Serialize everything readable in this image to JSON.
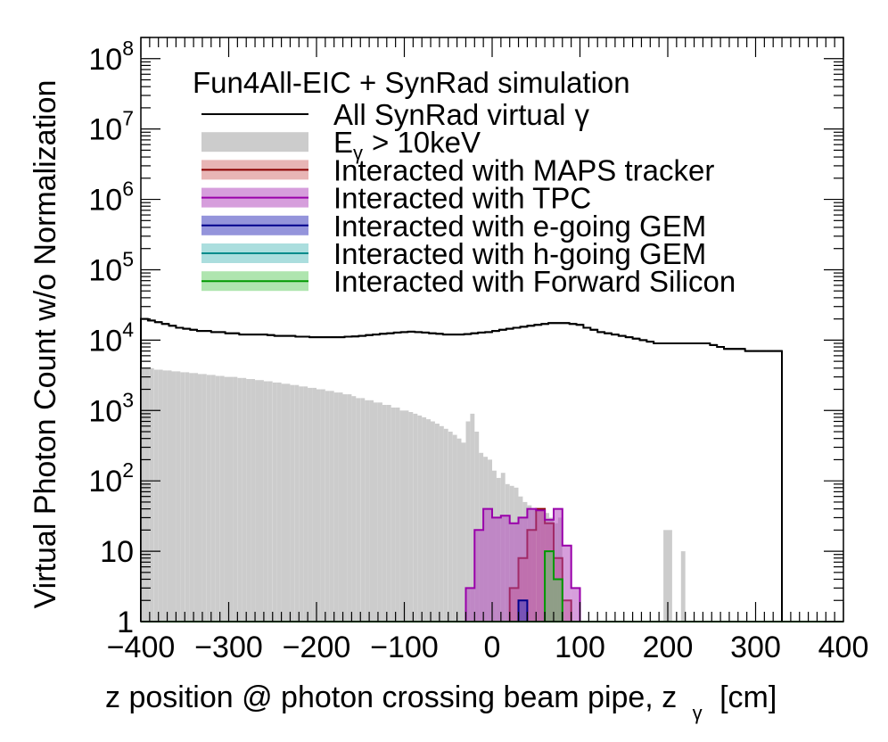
{
  "chart_data": {
    "type": "histogram",
    "title": "Fun4All-EIC + SynRad simulation",
    "xlabel": "z position @ photon crossing beam pipe, z",
    "xlabel_sub": "γ",
    "xlabel_unit": "[cm]",
    "ylabel": "Virtual Photon Count w/o Normalization",
    "xlim": [
      -400,
      400
    ],
    "ylim": [
      1,
      200000000
    ],
    "yscale": "log",
    "grid": false,
    "legend_position": "top",
    "x_ticks": [
      -400,
      -300,
      -200,
      -100,
      0,
      100,
      200,
      300,
      400
    ],
    "x_tick_labels": [
      "−400",
      "−300",
      "−200",
      "−100",
      "0",
      "100",
      "200",
      "300",
      "400"
    ],
    "y_ticks": [
      {
        "value": 1,
        "base": "1",
        "exp": ""
      },
      {
        "value": 10,
        "base": "10",
        "exp": ""
      },
      {
        "value": 100,
        "base": "10",
        "exp": "2"
      },
      {
        "value": 1000,
        "base": "10",
        "exp": "3"
      },
      {
        "value": 10000,
        "base": "10",
        "exp": "4"
      },
      {
        "value": 100000,
        "base": "10",
        "exp": "5"
      },
      {
        "value": 1000000,
        "base": "10",
        "exp": "6"
      },
      {
        "value": 10000000,
        "base": "10",
        "exp": "7"
      },
      {
        "value": 100000000,
        "base": "10",
        "exp": "8"
      }
    ],
    "series": [
      {
        "name": "All SynRad virtual γ",
        "legend_main": "All SynRad virtual",
        "legend_sub": "",
        "legend_tail": "γ",
        "style": "line",
        "color": "#000000",
        "fill": "none",
        "bin_edges": [
          -400,
          330
        ],
        "bin_width": 8,
        "values": [
          20000,
          19000,
          18000,
          17000,
          16000,
          15000,
          14500,
          14000,
          13500,
          13500,
          13000,
          13000,
          12500,
          12500,
          12000,
          12000,
          12000,
          12000,
          11800,
          11500,
          11500,
          11500,
          11200,
          11200,
          11000,
          11000,
          11000,
          11000,
          11000,
          11200,
          11300,
          11500,
          11800,
          12000,
          12300,
          12500,
          12800,
          13000,
          13200,
          13000,
          12800,
          12500,
          12300,
          12000,
          12000,
          12000,
          12200,
          12500,
          12800,
          13000,
          13500,
          14000,
          14500,
          15000,
          15500,
          16000,
          16500,
          17000,
          17500,
          17500,
          17500,
          17000,
          16500,
          15000,
          14000,
          13000,
          12500,
          12000,
          11500,
          11000,
          10500,
          10000,
          9500,
          9000,
          9000,
          9000,
          9000,
          9000,
          9000,
          9000,
          9000,
          8500,
          8000,
          7500,
          7500,
          7500,
          7000,
          7000,
          7000,
          7000,
          7000,
          7000
        ]
      },
      {
        "name": "E_γ > 10keV",
        "legend_main": "E",
        "legend_sub": "γ",
        "legend_tail": "> 10keV",
        "style": "fill",
        "color": "#cccccc",
        "fill": "#cccccc",
        "bin_edges": [
          -400,
          220
        ],
        "bin_width": 5,
        "values": [
          4000,
          4000,
          4000,
          3800,
          3800,
          3700,
          3700,
          3600,
          3600,
          3500,
          3500,
          3400,
          3400,
          3300,
          3300,
          3200,
          3200,
          3100,
          3100,
          3000,
          3000,
          3000,
          2900,
          2900,
          2800,
          2800,
          2700,
          2700,
          2600,
          2600,
          2500,
          2500,
          2400,
          2400,
          2300,
          2300,
          2200,
          2200,
          2100,
          2100,
          2000,
          2000,
          1900,
          1900,
          1800,
          1800,
          1700,
          1700,
          1600,
          1500,
          1500,
          1400,
          1400,
          1300,
          1300,
          1200,
          1200,
          1100,
          1100,
          1000,
          1000,
          950,
          900,
          850,
          800,
          750,
          700,
          650,
          600,
          550,
          500,
          450,
          400,
          350,
          700,
          900,
          500,
          250,
          220,
          200,
          140,
          110,
          130,
          90,
          85,
          80,
          60,
          50,
          45,
          40,
          40,
          40,
          35,
          30,
          25,
          30,
          1,
          1,
          1,
          1,
          1,
          1,
          1,
          1,
          1,
          1,
          1,
          1,
          1,
          1,
          1,
          1,
          1,
          1,
          1,
          1,
          1,
          1,
          1,
          1,
          1,
          1,
          1,
          1
        ],
        "overrides": [
          {
            "x0": 195,
            "x1": 205,
            "value": 20
          },
          {
            "x0": 205,
            "x1": 214,
            "value": 1
          },
          {
            "x0": 214,
            "x1": 224,
            "value": 10
          }
        ]
      },
      {
        "name": "Interacted with MAPS tracker",
        "legend_main": "Interacted with MAPS tracker",
        "legend_sub": "",
        "legend_tail": "",
        "style": "fill",
        "color": "#8b0000",
        "fill": "#cd5c5c",
        "fill_opacity": 0.45,
        "bin_edges": [
          20,
          90
        ],
        "bin_width": 10,
        "values": [
          3,
          8,
          20,
          40,
          25,
          8,
          2
        ]
      },
      {
        "name": "Interacted with TPC",
        "legend_main": "Interacted with TPC",
        "legend_sub": "",
        "legend_tail": "",
        "style": "fill",
        "color": "#9900aa",
        "fill": "#b44fbf",
        "fill_opacity": 0.55,
        "bin_edges": [
          -30,
          100
        ],
        "bin_width": 10,
        "values": [
          3,
          20,
          40,
          30,
          32,
          25,
          30,
          40,
          38,
          28,
          40,
          12,
          3
        ]
      },
      {
        "name": "Interacted with e-going GEM",
        "legend_main": "Interacted with e-going GEM",
        "legend_sub": "",
        "legend_tail": "",
        "style": "fill",
        "color": "#00008b",
        "fill": "#3c3cbe",
        "fill_opacity": 0.55,
        "bin_edges": [
          30,
          40
        ],
        "bin_width": 10,
        "values": [
          2
        ]
      },
      {
        "name": "Interacted with h-going GEM",
        "legend_main": "Interacted with h-going GEM",
        "legend_sub": "",
        "legend_tail": "",
        "style": "fill",
        "color": "#008b8b",
        "fill": "#66c2c2",
        "fill_opacity": 0.55,
        "bin_edges": [
          0,
          0
        ],
        "bin_width": 10,
        "values": []
      },
      {
        "name": "Interacted with Forward Silicon",
        "legend_main": "Interacted with Forward Silicon",
        "legend_sub": "",
        "legend_tail": "",
        "style": "fill",
        "color": "#009900",
        "fill": "#5fcc5f",
        "fill_opacity": 0.5,
        "bin_edges": [
          60,
          80
        ],
        "bin_width": 10,
        "values": [
          10,
          4
        ]
      }
    ]
  }
}
